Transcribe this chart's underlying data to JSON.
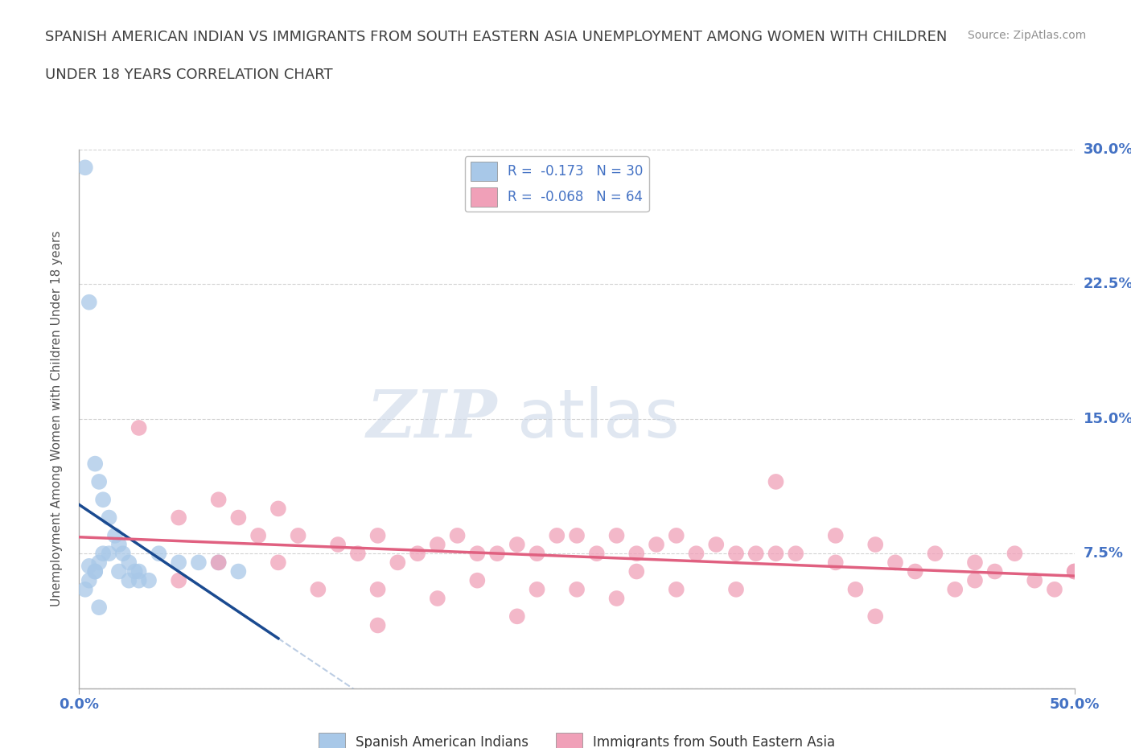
{
  "title_line1": "SPANISH AMERICAN INDIAN VS IMMIGRANTS FROM SOUTH EASTERN ASIA UNEMPLOYMENT AMONG WOMEN WITH CHILDREN",
  "title_line2": "UNDER 18 YEARS CORRELATION CHART",
  "source": "Source: ZipAtlas.com",
  "ylabel": "Unemployment Among Women with Children Under 18 years",
  "legend_label_blue": "R =  -0.173   N = 30",
  "legend_label_pink": "R =  -0.068   N = 64",
  "legend_label_blue_bottom": "Spanish American Indians",
  "legend_label_pink_bottom": "Immigrants from South Eastern Asia",
  "xlim": [
    0,
    50
  ],
  "ylim": [
    0,
    30
  ],
  "xticks": [
    0,
    50
  ],
  "yticks": [
    0,
    7.5,
    15.0,
    22.5,
    30.0
  ],
  "blue_scatter_color": "#a8c8e8",
  "pink_scatter_color": "#f0a0b8",
  "blue_line_color": "#1a4a90",
  "pink_line_color": "#e06080",
  "blue_dashed_color": "#a0b8d8",
  "grid_color": "#c8c8c8",
  "axis_tick_color": "#4472c4",
  "title_color": "#404040",
  "source_color": "#909090",
  "background_color": "#ffffff",
  "blue_x": [
    0.3,
    0.5,
    0.8,
    1.0,
    1.2,
    1.5,
    1.8,
    2.0,
    2.2,
    2.5,
    2.8,
    3.0,
    3.5,
    4.0,
    5.0,
    6.0,
    7.0,
    8.0,
    0.3,
    0.5,
    0.8,
    1.0,
    1.2,
    1.5,
    2.0,
    2.5,
    3.0,
    1.0,
    0.5,
    0.8
  ],
  "blue_y": [
    29.0,
    21.5,
    12.5,
    11.5,
    10.5,
    9.5,
    8.5,
    8.0,
    7.5,
    7.0,
    6.5,
    6.5,
    6.0,
    7.5,
    7.0,
    7.0,
    7.0,
    6.5,
    5.5,
    6.0,
    6.5,
    7.0,
    7.5,
    7.5,
    6.5,
    6.0,
    6.0,
    4.5,
    6.8,
    6.5
  ],
  "pink_x": [
    3.0,
    5.0,
    7.0,
    8.0,
    9.0,
    10.0,
    11.0,
    13.0,
    14.0,
    15.0,
    16.0,
    17.0,
    18.0,
    19.0,
    20.0,
    21.0,
    22.0,
    23.0,
    24.0,
    25.0,
    26.0,
    27.0,
    28.0,
    29.0,
    30.0,
    31.0,
    32.0,
    33.0,
    34.0,
    35.0,
    36.0,
    38.0,
    39.0,
    40.0,
    41.0,
    42.0,
    43.0,
    44.0,
    45.0,
    46.0,
    47.0,
    48.0,
    49.0,
    50.0,
    5.0,
    10.0,
    15.0,
    20.0,
    25.0,
    30.0,
    18.0,
    35.0,
    22.0,
    38.0,
    45.0,
    28.0,
    7.0,
    12.0,
    33.0,
    40.0,
    15.0,
    27.0,
    50.0,
    23.0
  ],
  "pink_y": [
    14.5,
    9.5,
    10.5,
    9.5,
    8.5,
    10.0,
    8.5,
    8.0,
    7.5,
    8.5,
    7.0,
    7.5,
    8.0,
    8.5,
    7.5,
    7.5,
    8.0,
    7.5,
    8.5,
    8.5,
    7.5,
    8.5,
    7.5,
    8.0,
    8.5,
    7.5,
    8.0,
    7.5,
    7.5,
    11.5,
    7.5,
    8.5,
    5.5,
    8.0,
    7.0,
    6.5,
    7.5,
    5.5,
    7.0,
    6.5,
    7.5,
    6.0,
    5.5,
    6.5,
    6.0,
    7.0,
    5.5,
    6.0,
    5.5,
    5.5,
    5.0,
    7.5,
    4.0,
    7.0,
    6.0,
    6.5,
    7.0,
    5.5,
    5.5,
    4.0,
    3.5,
    5.0,
    6.5,
    5.5
  ],
  "blue_trend_x0": 0,
  "blue_trend_x1": 50,
  "pink_trend_x0": 0,
  "pink_trend_x1": 50,
  "watermark_zip": "ZIP",
  "watermark_atlas": "atlas"
}
